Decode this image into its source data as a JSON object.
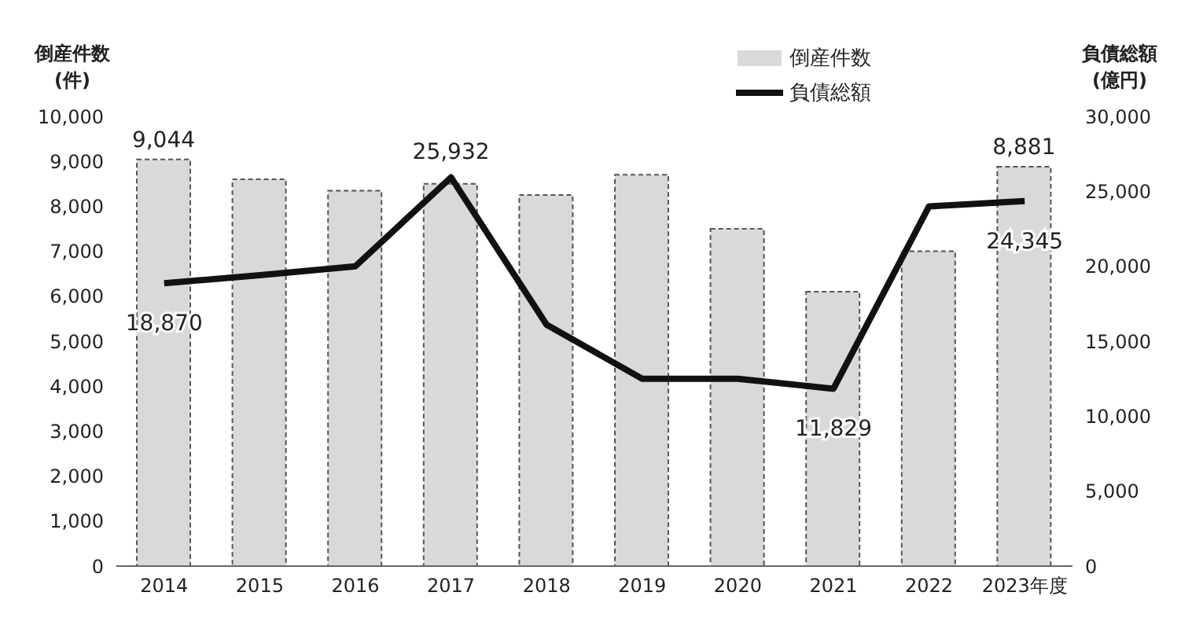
{
  "chart_data": {
    "type": "bar",
    "ylabel": "倒産件数\n(件)",
    "y2label": "負債総額\n(億円)",
    "categories": [
      "2014",
      "2015",
      "2016",
      "2017",
      "2018",
      "2019",
      "2020",
      "2021",
      "2022",
      "2023年度"
    ],
    "series": [
      {
        "name": "倒産件数",
        "color": "#d9d9d9",
        "values": [
          9044,
          8600,
          8350,
          8500,
          8250,
          8700,
          7500,
          6100,
          7000,
          8881
        ],
        "value_labels": [
          "9,044",
          null,
          null,
          null,
          null,
          null,
          null,
          null,
          null,
          "8,881"
        ]
      },
      {
        "name": "負債総額",
        "type": "line",
        "axis": "y2",
        "color": "#111111",
        "values": [
          18870,
          19400,
          20000,
          25932,
          16100,
          12500,
          12500,
          11829,
          24000,
          24345
        ],
        "value_labels": [
          "18,870",
          null,
          null,
          "25,932",
          null,
          null,
          null,
          "11,829",
          null,
          "24,345"
        ]
      }
    ],
    "ylim": [
      0,
      10000
    ],
    "yticks": [
      0,
      {
        "value": 1000,
        "label": "1,000"
      },
      {
        "value": 2000,
        "label": "2,000"
      },
      {
        "value": 3000,
        "label": "3,000"
      },
      {
        "value": 4000,
        "label": "4,000"
      },
      {
        "value": 5000,
        "label": "5,000"
      },
      {
        "value": 6000,
        "label": "6,000"
      },
      {
        "value": 7000,
        "label": "7,000"
      },
      {
        "value": 8000,
        "label": "8,000"
      },
      {
        "value": 9000,
        "label": "9,000"
      },
      {
        "value": 10000,
        "label": "10,000"
      }
    ],
    "y2lim": [
      0,
      30000
    ],
    "y2ticks": [
      0,
      {
        "value": 5000,
        "label": "5,000"
      },
      {
        "value": 10000,
        "label": "10,000"
      },
      {
        "value": 15000,
        "label": "15,000"
      },
      {
        "value": 20000,
        "label": "20,000"
      },
      {
        "value": 25000,
        "label": "25,000"
      },
      {
        "value": 30000,
        "label": "30,000"
      }
    ],
    "legend": "top right",
    "grid": false
  }
}
